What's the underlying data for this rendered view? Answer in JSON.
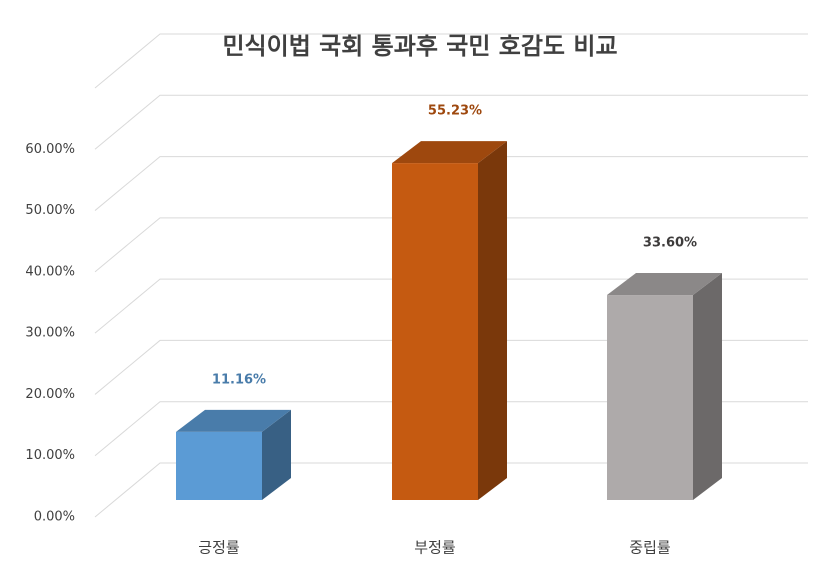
{
  "chart_data": {
    "type": "bar3d",
    "title": "민식이법 국회 통과후 국민 호감도 비교",
    "categories": [
      "긍정률",
      "부정률",
      "중립률"
    ],
    "values": [
      11.16,
      55.23,
      33.6
    ],
    "value_labels": [
      "11.16%",
      "55.23%",
      "33.60%"
    ],
    "colors": [
      "#5b9bd5",
      "#c55a11",
      "#aeaaaa"
    ],
    "ylim": [
      0,
      70
    ],
    "yticks": [
      {
        "value": 0,
        "label": "0.00%"
      },
      {
        "value": 10,
        "label": "10.00%"
      },
      {
        "value": 20,
        "label": "20.00%"
      },
      {
        "value": 30,
        "label": "30.00%"
      },
      {
        "value": 40,
        "label": "40.00%"
      },
      {
        "value": 50,
        "label": "50.00%"
      },
      {
        "value": 60,
        "label": "60.00%"
      }
    ],
    "grid": true
  }
}
